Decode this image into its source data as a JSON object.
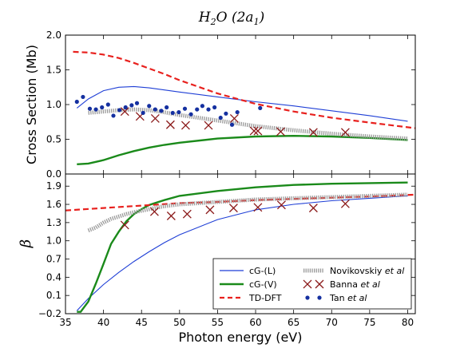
{
  "figure": {
    "title_main": "H",
    "title_sub1": "2",
    "title_rest": "O (2a",
    "title_sub2": "1",
    "title_close": ")",
    "xlabel": "Photon energy (eV)"
  },
  "legend": {
    "items": [
      {
        "label": "cG-(L)",
        "suffix": ""
      },
      {
        "label": "cG-(V)",
        "suffix": ""
      },
      {
        "label": "TD-DFT",
        "suffix": ""
      },
      {
        "label": "Novikovskiy ",
        "suffix": "et al"
      },
      {
        "label": "Banna ",
        "suffix": "et al"
      },
      {
        "label": "Tan ",
        "suffix": "et al"
      }
    ]
  },
  "colors": {
    "cgL": "#1f3fd6",
    "cgV": "#1a8a1a",
    "tddft": "#e8211e",
    "novikovskiy": "#9a9a9a",
    "banna": "#8b1a1a",
    "tan": "#1530a0"
  },
  "chart_data": [
    {
      "type": "line",
      "ylabel": "Cross Section (Mb)",
      "xlim": [
        35,
        81
      ],
      "ylim": [
        0.0,
        2.0
      ],
      "xticks": [
        35,
        40,
        45,
        50,
        55,
        60,
        65,
        70,
        75,
        80
      ],
      "yticks": [
        "0.0",
        "0.5",
        "1.0",
        "1.5",
        "2.0"
      ],
      "grid": false,
      "series": [
        {
          "name": "cG-(L)",
          "style": "thin-line",
          "x": [
            36.5,
            38,
            40,
            42,
            44,
            46,
            48,
            50,
            55,
            60,
            65,
            70,
            75,
            80
          ],
          "y": [
            0.95,
            1.08,
            1.2,
            1.25,
            1.26,
            1.24,
            1.21,
            1.18,
            1.11,
            1.04,
            0.98,
            0.91,
            0.84,
            0.76
          ]
        },
        {
          "name": "cG-(V)",
          "style": "thick-line",
          "x": [
            36.5,
            38,
            40,
            42,
            44,
            46,
            48,
            50,
            55,
            60,
            65,
            70,
            75,
            80
          ],
          "y": [
            0.14,
            0.15,
            0.2,
            0.27,
            0.33,
            0.38,
            0.42,
            0.45,
            0.51,
            0.54,
            0.55,
            0.54,
            0.52,
            0.49
          ]
        },
        {
          "name": "TD-DFT",
          "style": "dashed",
          "x": [
            36,
            38,
            40,
            42,
            44,
            46,
            48,
            50,
            55,
            60,
            65,
            70,
            75,
            81
          ],
          "y": [
            1.76,
            1.75,
            1.72,
            1.67,
            1.6,
            1.52,
            1.44,
            1.35,
            1.16,
            1.01,
            0.9,
            0.81,
            0.74,
            0.66
          ]
        },
        {
          "name": "Novikovskiy et al",
          "style": "hatched",
          "x": [
            38,
            40,
            42,
            44,
            46,
            48,
            50,
            55,
            60,
            65,
            70,
            75,
            80
          ],
          "y": [
            0.88,
            0.9,
            0.92,
            0.93,
            0.92,
            0.89,
            0.85,
            0.77,
            0.69,
            0.63,
            0.58,
            0.54,
            0.51
          ]
        },
        {
          "name": "Banna et al",
          "style": "x-marker",
          "x": [
            42.8,
            44.8,
            46.8,
            48.8,
            50.8,
            53.8,
            57.2,
            59.8,
            60.3,
            63.3,
            67.6,
            71.8
          ],
          "y": [
            0.9,
            0.83,
            0.8,
            0.71,
            0.7,
            0.7,
            0.8,
            0.62,
            0.62,
            0.61,
            0.6,
            0.6
          ]
        },
        {
          "name": "Tan et al",
          "style": "dot-marker",
          "x": [
            36.5,
            37.3,
            38.2,
            39.0,
            39.8,
            40.6,
            41.3,
            42.1,
            42.9,
            43.7,
            44.4,
            45.2,
            46.0,
            46.8,
            47.6,
            48.3,
            49.1,
            49.9,
            50.7,
            51.5,
            52.3,
            53.0,
            53.8,
            54.6,
            55.4,
            56.1,
            56.9,
            57.6,
            60.6
          ],
          "y": [
            1.04,
            1.11,
            0.94,
            0.93,
            0.96,
            1.0,
            0.84,
            0.92,
            0.96,
            0.99,
            1.02,
            0.88,
            0.98,
            0.93,
            0.91,
            0.96,
            0.88,
            0.89,
            0.94,
            0.86,
            0.93,
            0.98,
            0.93,
            0.96,
            0.81,
            0.87,
            0.71,
            0.89,
            0.95
          ]
        }
      ]
    },
    {
      "type": "line",
      "ylabel": "β",
      "xlim": [
        35,
        81
      ],
      "ylim": [
        -0.2,
        2.1
      ],
      "xticks": [
        35,
        40,
        45,
        50,
        55,
        60,
        65,
        70,
        75,
        80
      ],
      "yticks": [
        "−0.2",
        "0.1",
        "0.4",
        "0.7",
        "1.0",
        "1.3",
        "1.6",
        "1.9"
      ],
      "grid": false,
      "series": [
        {
          "name": "cG-(L)",
          "style": "thin-line",
          "x": [
            36.5,
            38,
            40,
            42,
            44,
            46,
            48,
            50,
            55,
            60,
            65,
            70,
            75,
            80
          ],
          "y": [
            -0.15,
            0.05,
            0.28,
            0.48,
            0.66,
            0.82,
            0.97,
            1.1,
            1.35,
            1.51,
            1.6,
            1.66,
            1.7,
            1.74
          ]
        },
        {
          "name": "cG-(V)",
          "style": "thick-line",
          "x": [
            36.5,
            37,
            38,
            39,
            40,
            41,
            42,
            43,
            44,
            45,
            46,
            48,
            50,
            55,
            60,
            65,
            70,
            75,
            80
          ],
          "y": [
            -0.17,
            -0.17,
            0.0,
            0.3,
            0.62,
            0.95,
            1.15,
            1.32,
            1.44,
            1.52,
            1.59,
            1.67,
            1.74,
            1.82,
            1.88,
            1.92,
            1.94,
            1.95,
            1.96
          ]
        },
        {
          "name": "TD-DFT",
          "style": "dashed",
          "x": [
            35,
            40,
            45,
            50,
            55,
            60,
            65,
            70,
            75,
            81
          ],
          "y": [
            1.5,
            1.54,
            1.58,
            1.62,
            1.64,
            1.67,
            1.69,
            1.71,
            1.73,
            1.76
          ]
        },
        {
          "name": "Novikovskiy et al",
          "style": "hatched",
          "x": [
            38,
            39,
            40,
            41,
            42,
            43,
            44,
            46,
            48,
            50,
            55,
            60,
            65,
            70,
            75,
            80
          ],
          "y": [
            1.17,
            1.22,
            1.3,
            1.36,
            1.4,
            1.44,
            1.47,
            1.52,
            1.57,
            1.6,
            1.64,
            1.68,
            1.7,
            1.72,
            1.74,
            1.76
          ]
        },
        {
          "name": "Banna et al",
          "style": "x-marker",
          "x": [
            42.8,
            46.7,
            48.9,
            51.0,
            54.0,
            57.1,
            60.3,
            63.4,
            67.6,
            71.8
          ],
          "y": [
            1.26,
            1.48,
            1.41,
            1.44,
            1.51,
            1.54,
            1.55,
            1.59,
            1.54,
            1.61
          ]
        }
      ]
    }
  ]
}
